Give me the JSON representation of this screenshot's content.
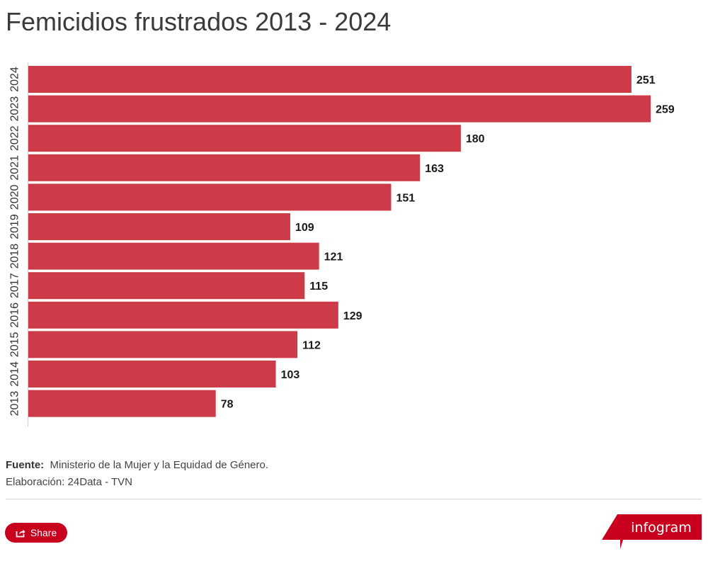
{
  "header": {
    "title": "Femicidios frustrados 2013 - 2024"
  },
  "chart_data": {
    "type": "bar",
    "orientation": "horizontal",
    "title": "Femicidios frustrados 2013 - 2024",
    "xlabel": "",
    "ylabel": "",
    "categories": [
      "2024",
      "2023",
      "2022",
      "2021",
      "2020",
      "2019",
      "2018",
      "2017",
      "2016",
      "2015",
      "2014",
      "2013"
    ],
    "values": [
      251,
      259,
      180,
      163,
      151,
      109,
      121,
      115,
      129,
      112,
      103,
      78
    ],
    "xlim": [
      0,
      259
    ],
    "grid": false,
    "bar_color": "#cc3b47",
    "data_labels": true
  },
  "footer": {
    "source_label": "Fuente:",
    "source_text": "Ministerio de la Mujer y la Equidad de Género.",
    "credit": "Elaboración: 24Data - TVN",
    "share_label": "Share",
    "share_icon": "share-icon",
    "logo_text": "infogram",
    "accent": "#c8001e"
  }
}
